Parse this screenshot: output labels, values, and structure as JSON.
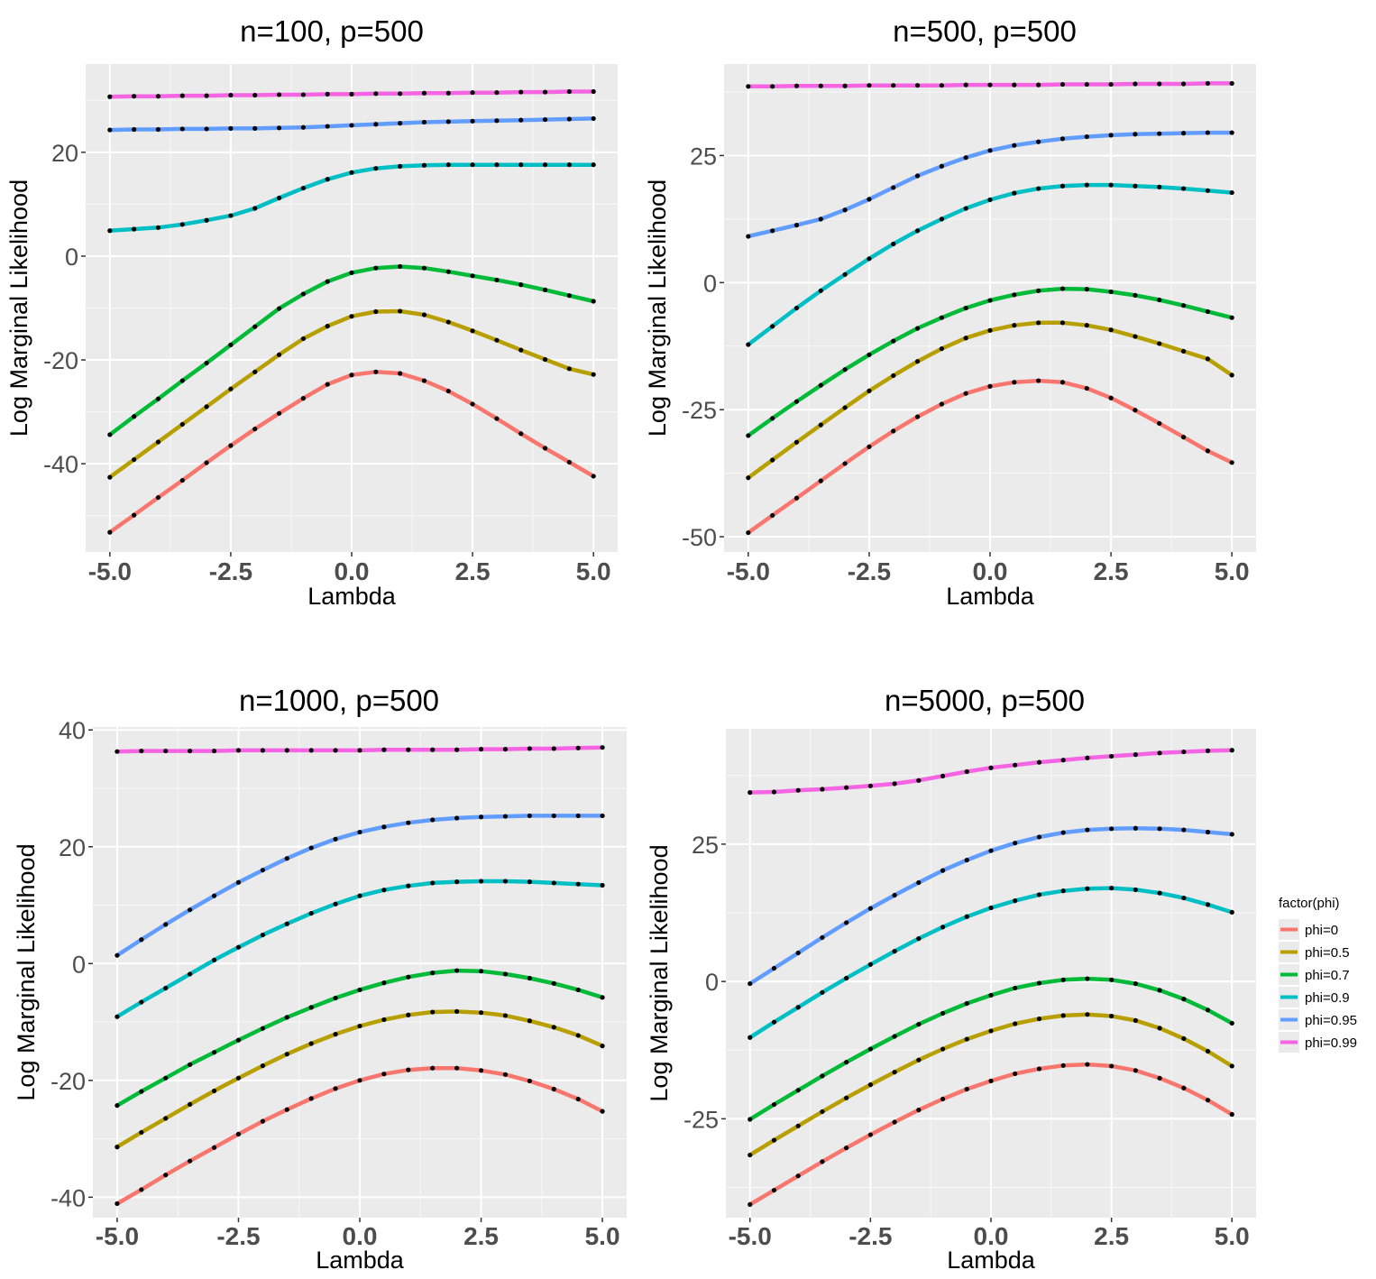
{
  "colors": {
    "panel_bg": "#ebebeb",
    "grid_major": "#ffffff",
    "grid_minor": "#f7f7f7",
    "point": "#000000",
    "tick_text": "#4d4d4d"
  },
  "legend": {
    "title": "factor(phi)",
    "position": "right",
    "entries": [
      {
        "label": "phi=0",
        "color": "#f8766d"
      },
      {
        "label": "phi=0.5",
        "color": "#b79f00"
      },
      {
        "label": "phi=0.7",
        "color": "#00ba38"
      },
      {
        "label": "phi=0.9",
        "color": "#00bfc4"
      },
      {
        "label": "phi=0.95",
        "color": "#619cff"
      },
      {
        "label": "phi=0.99",
        "color": "#f564e3"
      }
    ]
  },
  "chart_data": [
    {
      "type": "line",
      "title": "n=100, p=500",
      "xlabel": "Lambda",
      "ylabel": "Log Marginal Likelihood",
      "xlim": [
        -5.5,
        5.5
      ],
      "ylim": [
        -57,
        37
      ],
      "xticks": [
        -5,
        -2.5,
        0,
        2.5,
        5
      ],
      "xtick_labels": [
        "-5.0",
        "-2.5",
        "0.0",
        "2.5",
        "5.0"
      ],
      "yticks": [
        -40,
        -20,
        0,
        20
      ],
      "ytick_labels": [
        "-40",
        "-20",
        "0",
        "20"
      ],
      "grid": true,
      "legend": false,
      "x": [
        -5,
        -4.5,
        -4,
        -3.5,
        -3,
        -2.5,
        -2,
        -1.5,
        -1,
        -0.5,
        0,
        0.5,
        1,
        1.5,
        2,
        2.5,
        3,
        3.5,
        4,
        4.5,
        5
      ],
      "series": [
        {
          "name": "phi=0",
          "values": [
            -53.2,
            -49.9,
            -46.5,
            -43.2,
            -39.8,
            -36.5,
            -33.3,
            -30.3,
            -27.4,
            -24.7,
            -22.9,
            -22.3,
            -22.6,
            -24.0,
            -26.0,
            -28.5,
            -31.3,
            -34.2,
            -37.0,
            -39.7,
            -42.4
          ]
        },
        {
          "name": "phi=0.5",
          "values": [
            -42.6,
            -39.2,
            -35.8,
            -32.4,
            -29.0,
            -25.6,
            -22.3,
            -19.0,
            -15.9,
            -13.5,
            -11.6,
            -10.7,
            -10.6,
            -11.3,
            -12.7,
            -14.4,
            -16.2,
            -18.1,
            -19.9,
            -21.7,
            -22.8
          ]
        },
        {
          "name": "phi=0.7",
          "values": [
            -34.4,
            -30.9,
            -27.5,
            -24.0,
            -20.6,
            -17.1,
            -13.6,
            -10.1,
            -7.3,
            -4.9,
            -3.2,
            -2.3,
            -2.0,
            -2.3,
            -3.0,
            -3.8,
            -4.6,
            -5.5,
            -6.5,
            -7.6,
            -8.7
          ]
        },
        {
          "name": "phi=0.9",
          "values": [
            4.9,
            5.2,
            5.5,
            6.1,
            6.9,
            7.8,
            9.2,
            11.2,
            13.1,
            14.8,
            16.1,
            16.9,
            17.3,
            17.5,
            17.6,
            17.6,
            17.6,
            17.6,
            17.6,
            17.6,
            17.6
          ]
        },
        {
          "name": "phi=0.95",
          "values": [
            24.3,
            24.4,
            24.4,
            24.5,
            24.5,
            24.6,
            24.6,
            24.7,
            24.8,
            25.0,
            25.2,
            25.4,
            25.6,
            25.8,
            25.9,
            26.0,
            26.1,
            26.2,
            26.3,
            26.4,
            26.5
          ]
        },
        {
          "name": "phi=0.99",
          "values": [
            30.7,
            30.8,
            30.8,
            30.9,
            30.9,
            31.0,
            31.0,
            31.1,
            31.1,
            31.2,
            31.2,
            31.3,
            31.3,
            31.4,
            31.4,
            31.5,
            31.5,
            31.6,
            31.6,
            31.7,
            31.7
          ]
        }
      ]
    },
    {
      "type": "line",
      "title": "n=500, p=500",
      "xlabel": "Lambda",
      "ylabel": "Log Marginal Likelihood",
      "xlim": [
        -5.5,
        5.5
      ],
      "ylim": [
        -53,
        43
      ],
      "xticks": [
        -5,
        -2.5,
        0,
        2.5,
        5
      ],
      "xtick_labels": [
        "-5.0",
        "-2.5",
        "0.0",
        "2.5",
        "5.0"
      ],
      "yticks": [
        -50,
        -25,
        0,
        25
      ],
      "ytick_labels": [
        "-50",
        "-25",
        "0",
        "25"
      ],
      "grid": true,
      "legend": true,
      "x": [
        -5,
        -4.5,
        -4,
        -3.5,
        -3,
        -2.5,
        -2,
        -1.5,
        -1,
        -0.5,
        0,
        0.5,
        1,
        1.5,
        2,
        2.5,
        3,
        3.5,
        4,
        4.5,
        5
      ],
      "series": [
        {
          "name": "phi=0",
          "values": [
            -49.2,
            -45.8,
            -42.4,
            -39.0,
            -35.6,
            -32.3,
            -29.2,
            -26.4,
            -23.9,
            -21.8,
            -20.4,
            -19.6,
            -19.3,
            -19.6,
            -20.8,
            -22.7,
            -25.1,
            -27.7,
            -30.4,
            -33.1,
            -35.4
          ]
        },
        {
          "name": "phi=0.5",
          "values": [
            -38.4,
            -34.9,
            -31.4,
            -28.0,
            -24.6,
            -21.3,
            -18.3,
            -15.5,
            -13.0,
            -10.9,
            -9.4,
            -8.4,
            -7.9,
            -7.9,
            -8.4,
            -9.3,
            -10.6,
            -12.0,
            -13.5,
            -15.0,
            -18.2
          ]
        },
        {
          "name": "phi=0.7",
          "values": [
            -30.1,
            -26.7,
            -23.4,
            -20.2,
            -17.1,
            -14.2,
            -11.5,
            -9.0,
            -6.9,
            -5.0,
            -3.5,
            -2.4,
            -1.6,
            -1.2,
            -1.3,
            -1.8,
            -2.5,
            -3.4,
            -4.5,
            -5.7,
            -6.9
          ]
        },
        {
          "name": "phi=0.9",
          "values": [
            -12.2,
            -8.6,
            -5.0,
            -1.6,
            1.6,
            4.7,
            7.6,
            10.2,
            12.5,
            14.6,
            16.3,
            17.6,
            18.5,
            19.0,
            19.2,
            19.2,
            19.0,
            18.8,
            18.5,
            18.1,
            17.7
          ]
        },
        {
          "name": "phi=0.95",
          "values": [
            9.1,
            10.2,
            11.3,
            12.5,
            14.3,
            16.4,
            18.7,
            21.0,
            22.9,
            24.6,
            26.0,
            27.0,
            27.7,
            28.3,
            28.7,
            29.0,
            29.2,
            29.3,
            29.4,
            29.5,
            29.5
          ]
        },
        {
          "name": "phi=0.99",
          "values": [
            38.6,
            38.6,
            38.7,
            38.7,
            38.7,
            38.8,
            38.8,
            38.8,
            38.8,
            38.9,
            38.9,
            38.9,
            38.9,
            39.0,
            39.0,
            39.0,
            39.1,
            39.1,
            39.1,
            39.2,
            39.2
          ]
        }
      ]
    },
    {
      "type": "line",
      "title": "n=1000, p=500",
      "xlabel": "Lambda",
      "ylabel": "Log Marginal Likelihood",
      "xlim": [
        -5.5,
        5.5
      ],
      "ylim": [
        -43.5,
        40.5
      ],
      "xticks": [
        -5,
        -2.5,
        0,
        2.5,
        5
      ],
      "xtick_labels": [
        "-5.0",
        "-2.5",
        "0.0",
        "2.5",
        "5.0"
      ],
      "yticks": [
        -40,
        -20,
        0,
        20,
        40
      ],
      "ytick_labels": [
        "-40",
        "-20",
        "0",
        "20",
        "40"
      ],
      "grid": true,
      "legend": false,
      "x": [
        -5,
        -4.5,
        -4,
        -3.5,
        -3,
        -2.5,
        -2,
        -1.5,
        -1,
        -0.5,
        0,
        0.5,
        1,
        1.5,
        2,
        2.5,
        3,
        3.5,
        4,
        4.5,
        5
      ],
      "series": [
        {
          "name": "phi=0",
          "values": [
            -41.1,
            -38.7,
            -36.2,
            -33.8,
            -31.5,
            -29.2,
            -27.0,
            -25.0,
            -23.1,
            -21.4,
            -20.0,
            -18.9,
            -18.2,
            -17.9,
            -17.9,
            -18.3,
            -19.0,
            -20.1,
            -21.5,
            -23.2,
            -25.3
          ]
        },
        {
          "name": "phi=0.5",
          "values": [
            -31.4,
            -28.9,
            -26.5,
            -24.1,
            -21.8,
            -19.6,
            -17.5,
            -15.5,
            -13.7,
            -12.1,
            -10.7,
            -9.6,
            -8.8,
            -8.3,
            -8.2,
            -8.4,
            -8.9,
            -9.8,
            -10.9,
            -12.3,
            -14.1
          ]
        },
        {
          "name": "phi=0.7",
          "values": [
            -24.3,
            -21.9,
            -19.6,
            -17.3,
            -15.2,
            -13.1,
            -11.1,
            -9.2,
            -7.5,
            -5.9,
            -4.5,
            -3.3,
            -2.3,
            -1.6,
            -1.2,
            -1.3,
            -1.8,
            -2.5,
            -3.4,
            -4.5,
            -5.8
          ]
        },
        {
          "name": "phi=0.9",
          "values": [
            -9.1,
            -6.6,
            -4.2,
            -1.8,
            0.6,
            2.8,
            4.9,
            6.8,
            8.6,
            10.2,
            11.6,
            12.6,
            13.3,
            13.8,
            14.0,
            14.1,
            14.1,
            14.0,
            13.8,
            13.6,
            13.4
          ]
        },
        {
          "name": "phi=0.95",
          "values": [
            1.4,
            4.1,
            6.7,
            9.2,
            11.6,
            13.9,
            16.0,
            18.0,
            19.8,
            21.3,
            22.5,
            23.4,
            24.1,
            24.6,
            24.9,
            25.1,
            25.2,
            25.3,
            25.3,
            25.3,
            25.3
          ]
        },
        {
          "name": "phi=0.99",
          "values": [
            36.3,
            36.4,
            36.4,
            36.4,
            36.4,
            36.5,
            36.5,
            36.5,
            36.5,
            36.5,
            36.5,
            36.6,
            36.6,
            36.6,
            36.6,
            36.7,
            36.7,
            36.8,
            36.8,
            36.9,
            37.0
          ]
        }
      ]
    },
    {
      "type": "line",
      "title": "n=5000, p=500",
      "xlabel": "Lambda",
      "ylabel": "Log Marginal Likelihood",
      "xlim": [
        -5.5,
        5.5
      ],
      "ylim": [
        -43,
        46
      ],
      "xticks": [
        -5,
        -2.5,
        0,
        2.5,
        5
      ],
      "xtick_labels": [
        "-5.0",
        "-2.5",
        "0.0",
        "2.5",
        "5.0"
      ],
      "yticks": [
        -25,
        0,
        25
      ],
      "ytick_labels": [
        "-25",
        "0",
        "25"
      ],
      "grid": true,
      "legend": true,
      "x": [
        -5,
        -4.5,
        -4,
        -3.5,
        -3,
        -2.5,
        -2,
        -1.5,
        -1,
        -0.5,
        0,
        0.5,
        1,
        1.5,
        2,
        2.5,
        3,
        3.5,
        4,
        4.5,
        5
      ],
      "series": [
        {
          "name": "phi=0",
          "values": [
            -40.6,
            -38.0,
            -35.4,
            -32.8,
            -30.3,
            -27.9,
            -25.6,
            -23.4,
            -21.4,
            -19.6,
            -18.1,
            -16.8,
            -15.9,
            -15.3,
            -15.1,
            -15.4,
            -16.2,
            -17.6,
            -19.4,
            -21.6,
            -24.2
          ]
        },
        {
          "name": "phi=0.5",
          "values": [
            -31.6,
            -28.9,
            -26.3,
            -23.7,
            -21.2,
            -18.8,
            -16.5,
            -14.3,
            -12.3,
            -10.5,
            -9.0,
            -7.7,
            -6.8,
            -6.2,
            -6.0,
            -6.3,
            -7.1,
            -8.5,
            -10.4,
            -12.7,
            -15.4
          ]
        },
        {
          "name": "phi=0.7",
          "values": [
            -25.1,
            -22.4,
            -19.8,
            -17.2,
            -14.7,
            -12.3,
            -10.0,
            -7.8,
            -5.8,
            -4.0,
            -2.5,
            -1.2,
            -0.3,
            0.3,
            0.5,
            0.3,
            -0.4,
            -1.6,
            -3.2,
            -5.2,
            -7.6
          ]
        },
        {
          "name": "phi=0.9",
          "values": [
            -10.2,
            -7.4,
            -4.7,
            -2.0,
            0.6,
            3.1,
            5.5,
            7.8,
            9.9,
            11.8,
            13.4,
            14.7,
            15.8,
            16.5,
            16.9,
            17.0,
            16.7,
            16.1,
            15.2,
            14.0,
            12.6
          ]
        },
        {
          "name": "phi=0.95",
          "values": [
            -0.4,
            2.4,
            5.2,
            8.0,
            10.7,
            13.3,
            15.7,
            18.0,
            20.2,
            22.1,
            23.8,
            25.2,
            26.3,
            27.1,
            27.6,
            27.8,
            27.9,
            27.8,
            27.6,
            27.2,
            26.8
          ]
        },
        {
          "name": "phi=0.99",
          "values": [
            34.4,
            34.5,
            34.8,
            35.0,
            35.3,
            35.6,
            36.0,
            36.6,
            37.4,
            38.2,
            38.9,
            39.4,
            39.9,
            40.3,
            40.7,
            41.0,
            41.3,
            41.6,
            41.8,
            42.0,
            42.1
          ]
        }
      ]
    }
  ]
}
